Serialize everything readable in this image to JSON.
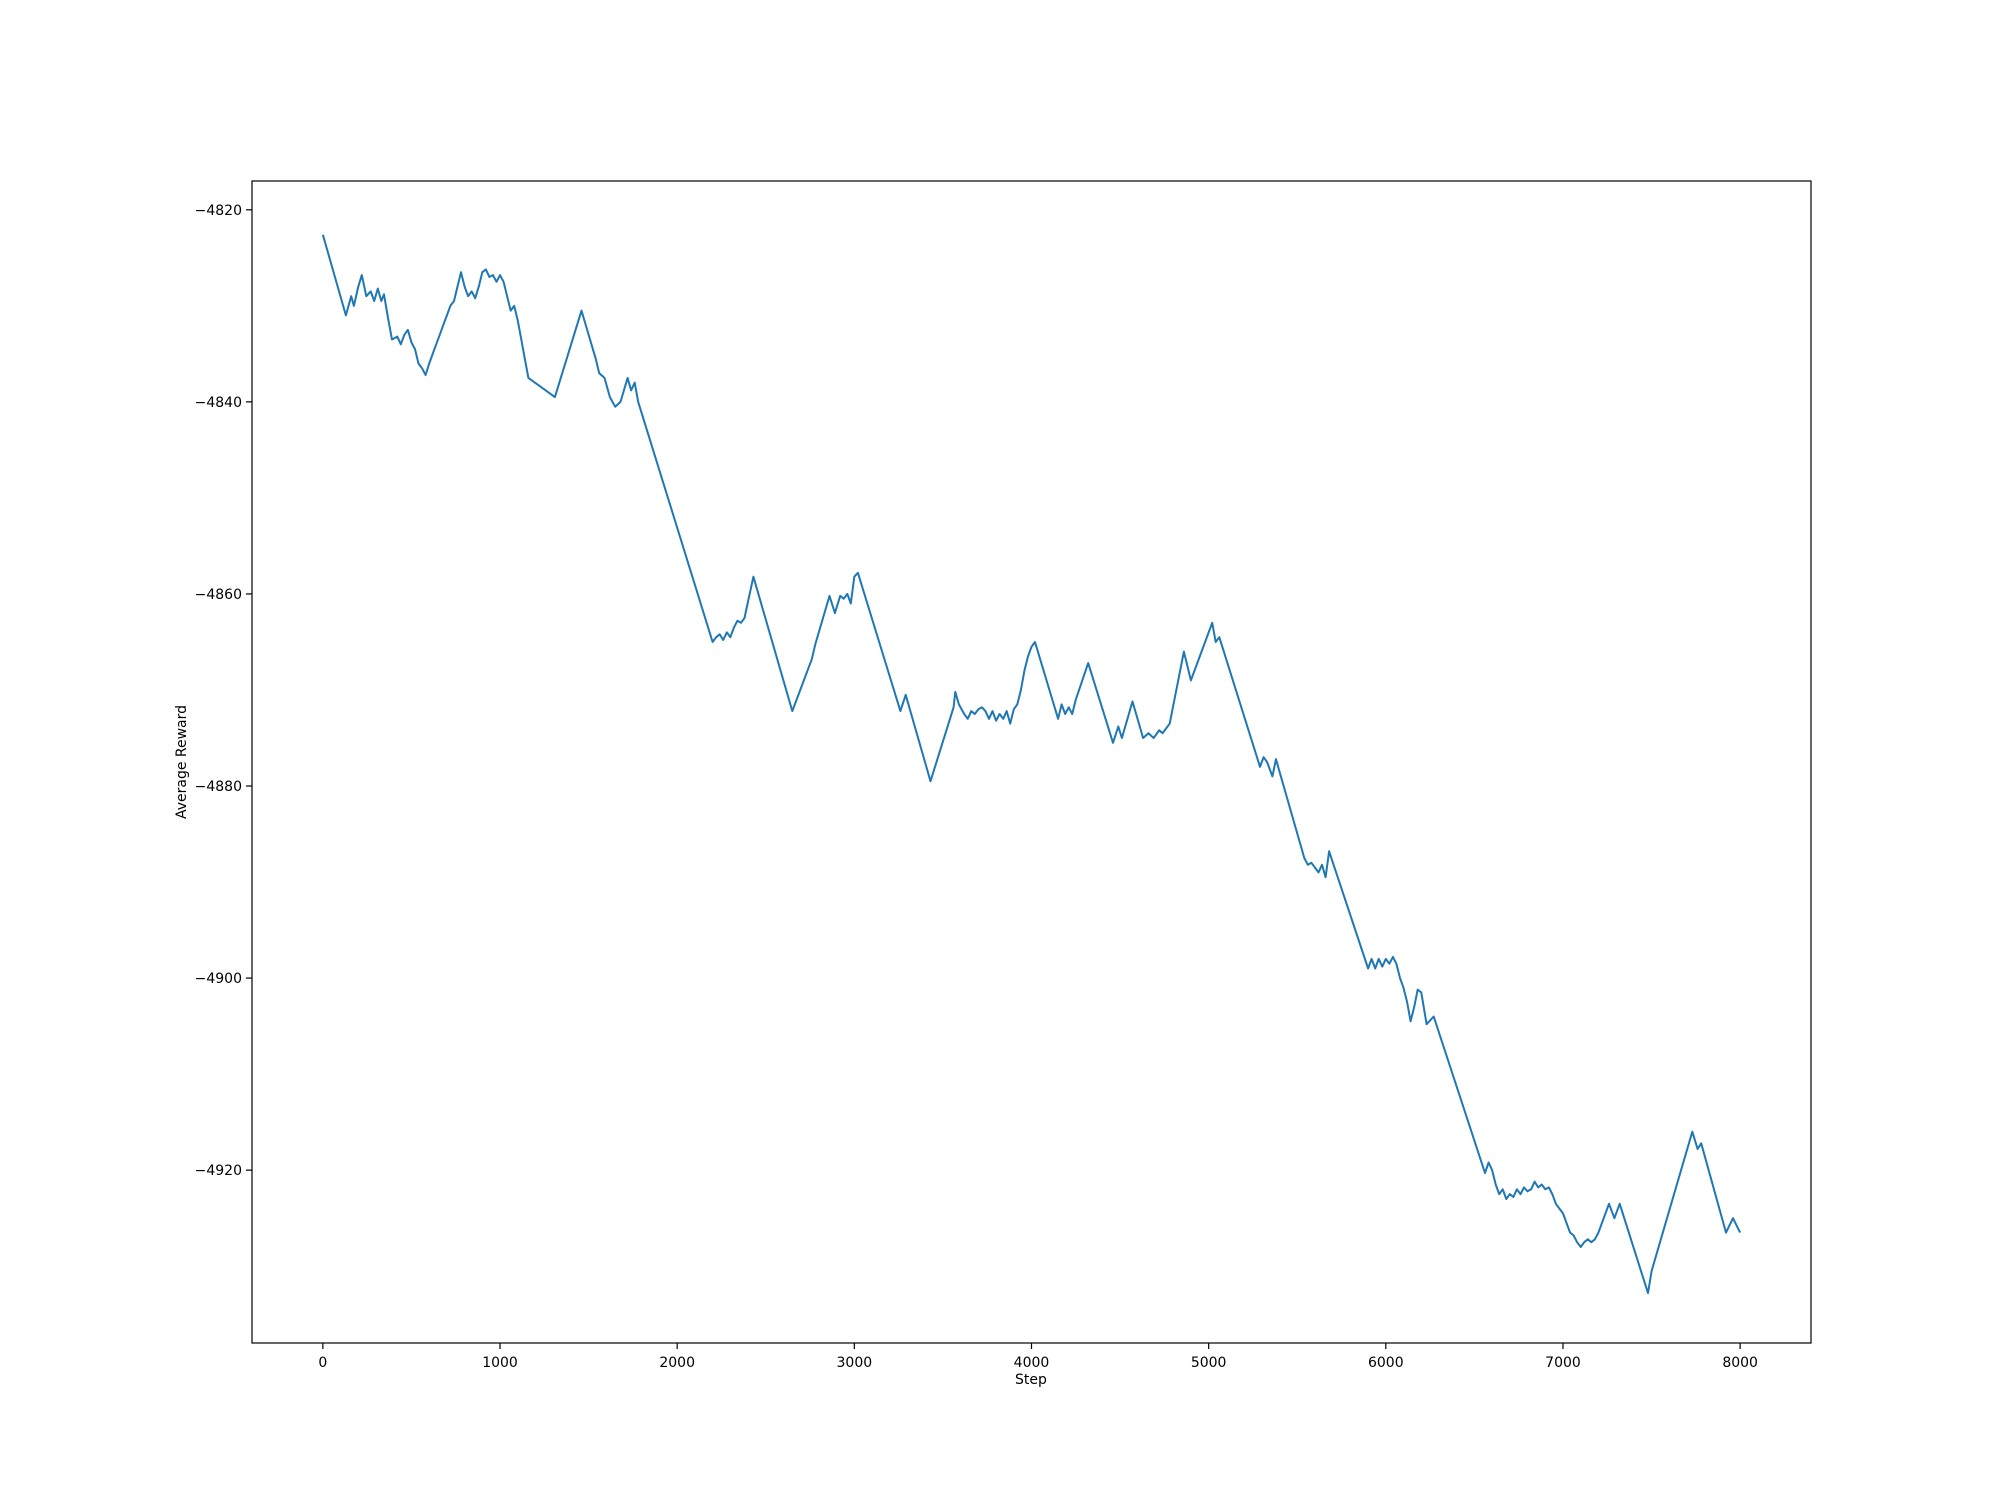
{
  "chart_data": {
    "type": "line",
    "title": "",
    "xlabel": "Step",
    "ylabel": "Average Reward",
    "xlim": [
      -400,
      8400
    ],
    "ylim": [
      -4938,
      -4817
    ],
    "xticks": [
      0,
      1000,
      2000,
      3000,
      4000,
      5000,
      6000,
      7000,
      8000
    ],
    "yticks": [
      -4820,
      -4840,
      -4860,
      -4880,
      -4900,
      -4920
    ],
    "xtick_labels": [
      "0",
      "1000",
      "2000",
      "3000",
      "4000",
      "5000",
      "6000",
      "7000",
      "8000"
    ],
    "ytick_labels": [
      "−4820",
      "−4840",
      "−4860",
      "−4880",
      "−4900",
      "−4920"
    ],
    "grid": false,
    "legend": "none",
    "series": [
      {
        "color": "#1f77b4",
        "x": [
          0,
          130,
          160,
          175,
          200,
          220,
          245,
          270,
          290,
          310,
          330,
          345,
          370,
          390,
          420,
          440,
          460,
          480,
          500,
          520,
          540,
          560,
          580,
          600,
          620,
          640,
          660,
          680,
          700,
          720,
          740,
          760,
          780,
          800,
          820,
          840,
          860,
          880,
          900,
          920,
          940,
          960,
          980,
          1000,
          1020,
          1040,
          1060,
          1080,
          1100,
          1120,
          1140,
          1160,
          1310,
          1460,
          1540,
          1560,
          1590,
          1620,
          1650,
          1680,
          1720,
          1740,
          1760,
          1780,
          2200,
          2220,
          2240,
          2260,
          2280,
          2300,
          2320,
          2340,
          2360,
          2380,
          2430,
          2650,
          2760,
          2780,
          2860,
          2890,
          2920,
          2940,
          2960,
          2980,
          3000,
          3020,
          3260,
          3290,
          3430,
          3560,
          3570,
          3590,
          3620,
          3640,
          3660,
          3680,
          3700,
          3720,
          3740,
          3760,
          3780,
          3800,
          3820,
          3840,
          3860,
          3880,
          3900,
          3920,
          3940,
          3960,
          3980,
          4000,
          4020,
          4150,
          4170,
          4190,
          4210,
          4230,
          4250,
          4320,
          4460,
          4490,
          4510,
          4570,
          4630,
          4660,
          4690,
          4720,
          4740,
          4780,
          4860,
          4900,
          5020,
          5040,
          5060,
          5290,
          5310,
          5330,
          5360,
          5380,
          5400,
          5540,
          5560,
          5580,
          5600,
          5620,
          5640,
          5660,
          5680,
          5900,
          5920,
          5940,
          5960,
          5980,
          6000,
          6020,
          6040,
          6060,
          6080,
          6100,
          6120,
          6140,
          6160,
          6180,
          6200,
          6230,
          6270,
          6560,
          6580,
          6600,
          6620,
          6640,
          6660,
          6680,
          6700,
          6720,
          6740,
          6760,
          6780,
          6800,
          6820,
          6840,
          6860,
          6880,
          6900,
          6920,
          6940,
          6960,
          6980,
          7000,
          7020,
          7040,
          7060,
          7080,
          7100,
          7120,
          7140,
          7160,
          7180,
          7200,
          7260,
          7290,
          7320,
          7480,
          7500,
          7730,
          7760,
          7780,
          7920,
          7960,
          8000
        ],
        "y": [
          -4822.6,
          -4831,
          -4829,
          -4830,
          -4828,
          -4826.8,
          -4829,
          -4828.5,
          -4829.5,
          -4828.2,
          -4829.5,
          -4828.8,
          -4831.5,
          -4833.5,
          -4833.2,
          -4834,
          -4833,
          -4832.5,
          -4833.8,
          -4834.5,
          -4836,
          -4836.5,
          -4837.2,
          -4836,
          -4835,
          -4834,
          -4833,
          -4832,
          -4831,
          -4830,
          -4829.5,
          -4828,
          -4826.5,
          -4828,
          -4829,
          -4828.5,
          -4829.2,
          -4828,
          -4826.5,
          -4826.2,
          -4827,
          -4826.8,
          -4827.5,
          -4826.8,
          -4827.5,
          -4829,
          -4830.5,
          -4830,
          -4831.5,
          -4833.5,
          -4835.5,
          -4837.5,
          -4839.5,
          -4830.5,
          -4835.5,
          -4837,
          -4837.5,
          -4839.5,
          -4840.5,
          -4840,
          -4837.5,
          -4838.8,
          -4838,
          -4840,
          -4865,
          -4864.5,
          -4864.2,
          -4864.8,
          -4864,
          -4864.5,
          -4863.5,
          -4862.8,
          -4863,
          -4862.5,
          -4858.2,
          -4872.2,
          -4866.8,
          -4865.2,
          -4860.2,
          -4862,
          -4860.2,
          -4860.5,
          -4860,
          -4861,
          -4858.2,
          -4857.8,
          -4872.2,
          -4870.5,
          -4879.5,
          -4871.8,
          -4870.2,
          -4871.5,
          -4872.5,
          -4873,
          -4872.2,
          -4872.5,
          -4872,
          -4871.8,
          -4872.2,
          -4873,
          -4872.2,
          -4873.2,
          -4872.5,
          -4873,
          -4872.2,
          -4873.5,
          -4872,
          -4871.5,
          -4870,
          -4868,
          -4866.5,
          -4865.5,
          -4865,
          -4873,
          -4871.5,
          -4872.5,
          -4871.8,
          -4872.5,
          -4871,
          -4867.2,
          -4875.5,
          -4873.8,
          -4875,
          -4871.2,
          -4875,
          -4874.5,
          -4875,
          -4874.2,
          -4874.5,
          -4873.5,
          -4866,
          -4869,
          -4863,
          -4865,
          -4864.5,
          -4878,
          -4877,
          -4877.5,
          -4879,
          -4877.2,
          -4878.5,
          -4887.5,
          -4888.2,
          -4888,
          -4888.5,
          -4889,
          -4888.2,
          -4889.5,
          -4886.8,
          -4899,
          -4898,
          -4899,
          -4898,
          -4898.8,
          -4898,
          -4898.5,
          -4897.8,
          -4898.5,
          -4900,
          -4901,
          -4902.5,
          -4904.5,
          -4903,
          -4901.2,
          -4901.5,
          -4904.8,
          -4904,
          -4920.3,
          -4919.2,
          -4920,
          -4921.5,
          -4922.5,
          -4922,
          -4923,
          -4922.5,
          -4922.8,
          -4922,
          -4922.5,
          -4921.8,
          -4922.2,
          -4922,
          -4921.2,
          -4921.8,
          -4921.5,
          -4922,
          -4921.8,
          -4922.5,
          -4923.5,
          -4924,
          -4924.5,
          -4925.5,
          -4926.5,
          -4926.8,
          -4927.5,
          -4928,
          -4927.5,
          -4927.2,
          -4927.5,
          -4927.2,
          -4926.5,
          -4923.5,
          -4925,
          -4923.5,
          -4932.8,
          -4930.5,
          -4916,
          -4917.8,
          -4917.2,
          -4926.5,
          -4925,
          -4926.5
        ]
      }
    ]
  }
}
